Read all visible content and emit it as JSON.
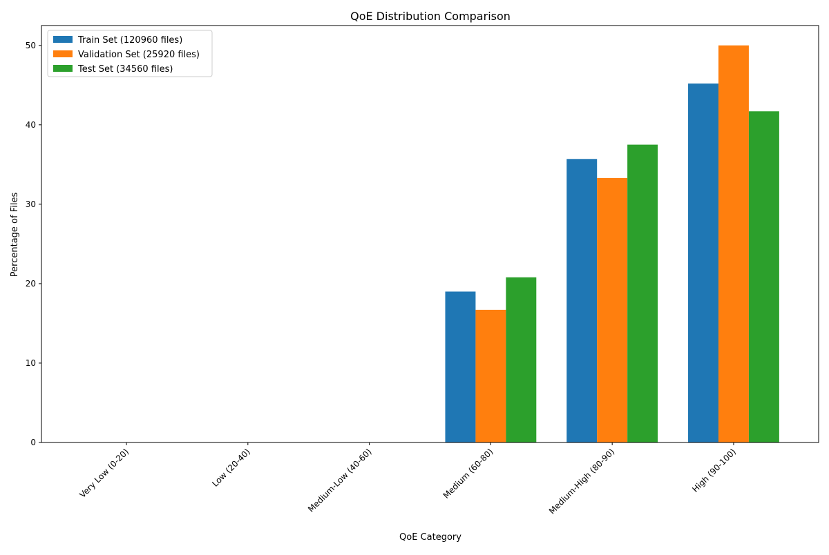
{
  "chart_data": {
    "type": "bar",
    "title": "QoE Distribution Comparison",
    "xlabel": "QoE Category",
    "ylabel": "Percentage of Files",
    "ylim": [
      0,
      52.5
    ],
    "yticks": [
      0,
      10,
      20,
      30,
      40,
      50
    ],
    "grid": false,
    "legend_position": "top-left",
    "categories": [
      "Very Low (0-20)",
      "Low (20-40)",
      "Medium-Low (40-60)",
      "Medium (60-80)",
      "Medium-High (80-90)",
      "High (90-100)"
    ],
    "series": [
      {
        "name": "Train Set (120960 files)",
        "color": "#1f77b4",
        "values": [
          0,
          0,
          0,
          19.0,
          35.7,
          45.2
        ]
      },
      {
        "name": "Validation Set (25920 files)",
        "color": "#ff7f0e",
        "values": [
          0,
          0,
          0,
          16.7,
          33.3,
          50.0
        ]
      },
      {
        "name": "Test Set (34560 files)",
        "color": "#2ca02c",
        "values": [
          0,
          0,
          0,
          20.8,
          37.5,
          41.7
        ]
      }
    ]
  }
}
